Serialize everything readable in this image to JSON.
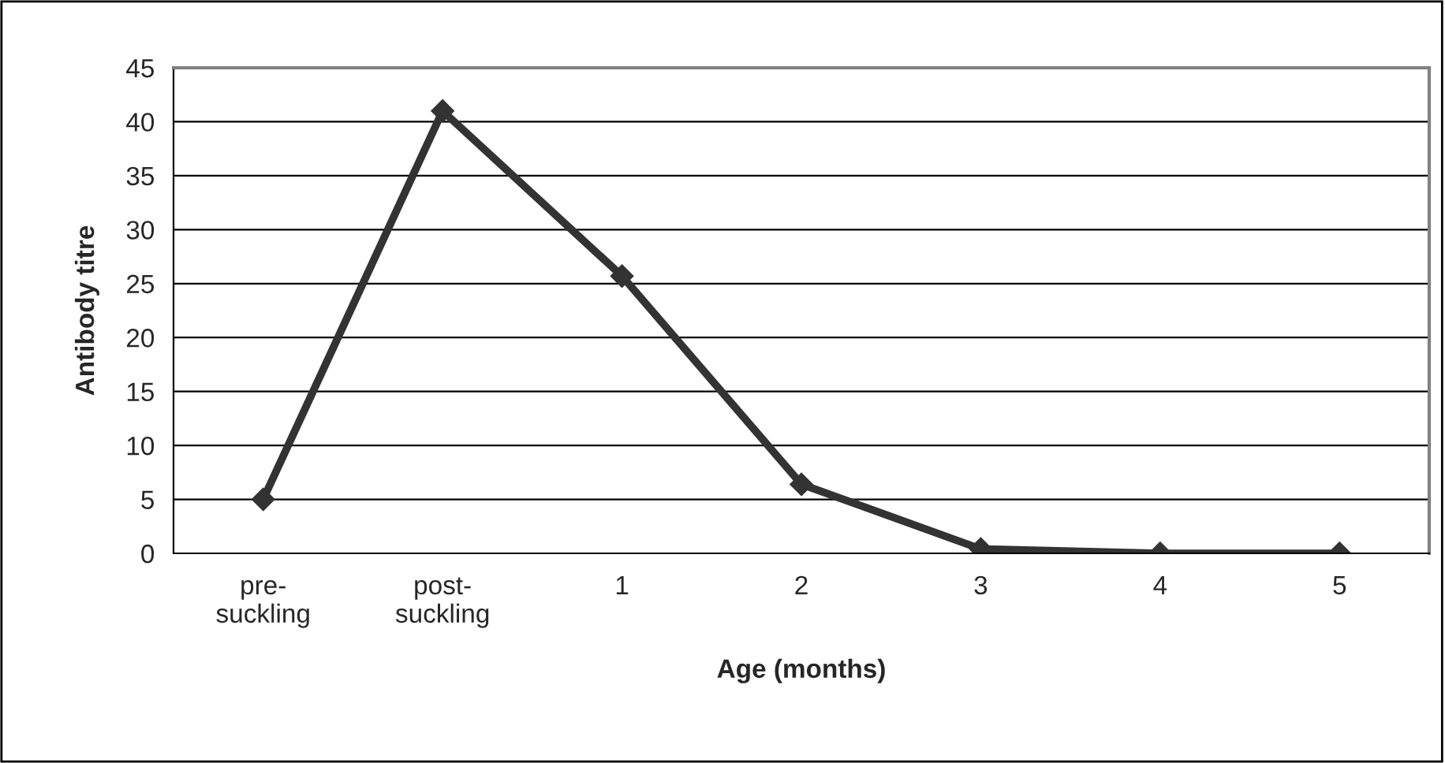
{
  "chart_data": {
    "type": "line",
    "xlabel": "Age (months)",
    "ylabel": "Antibody titre",
    "categories": [
      "pre-\nsuckling",
      "post-\nsuckling",
      "1",
      "2",
      "3",
      "4",
      "5"
    ],
    "series": [
      {
        "color": "#333333",
        "values": [
          5,
          41,
          25.7,
          6.4,
          0.4,
          0,
          0
        ]
      }
    ],
    "ylim": [
      0,
      45
    ],
    "yticks": [
      0,
      5,
      10,
      15,
      20,
      25,
      30,
      35,
      40,
      45
    ],
    "grid": "y",
    "marker": "diamond",
    "line_style": "solid"
  }
}
